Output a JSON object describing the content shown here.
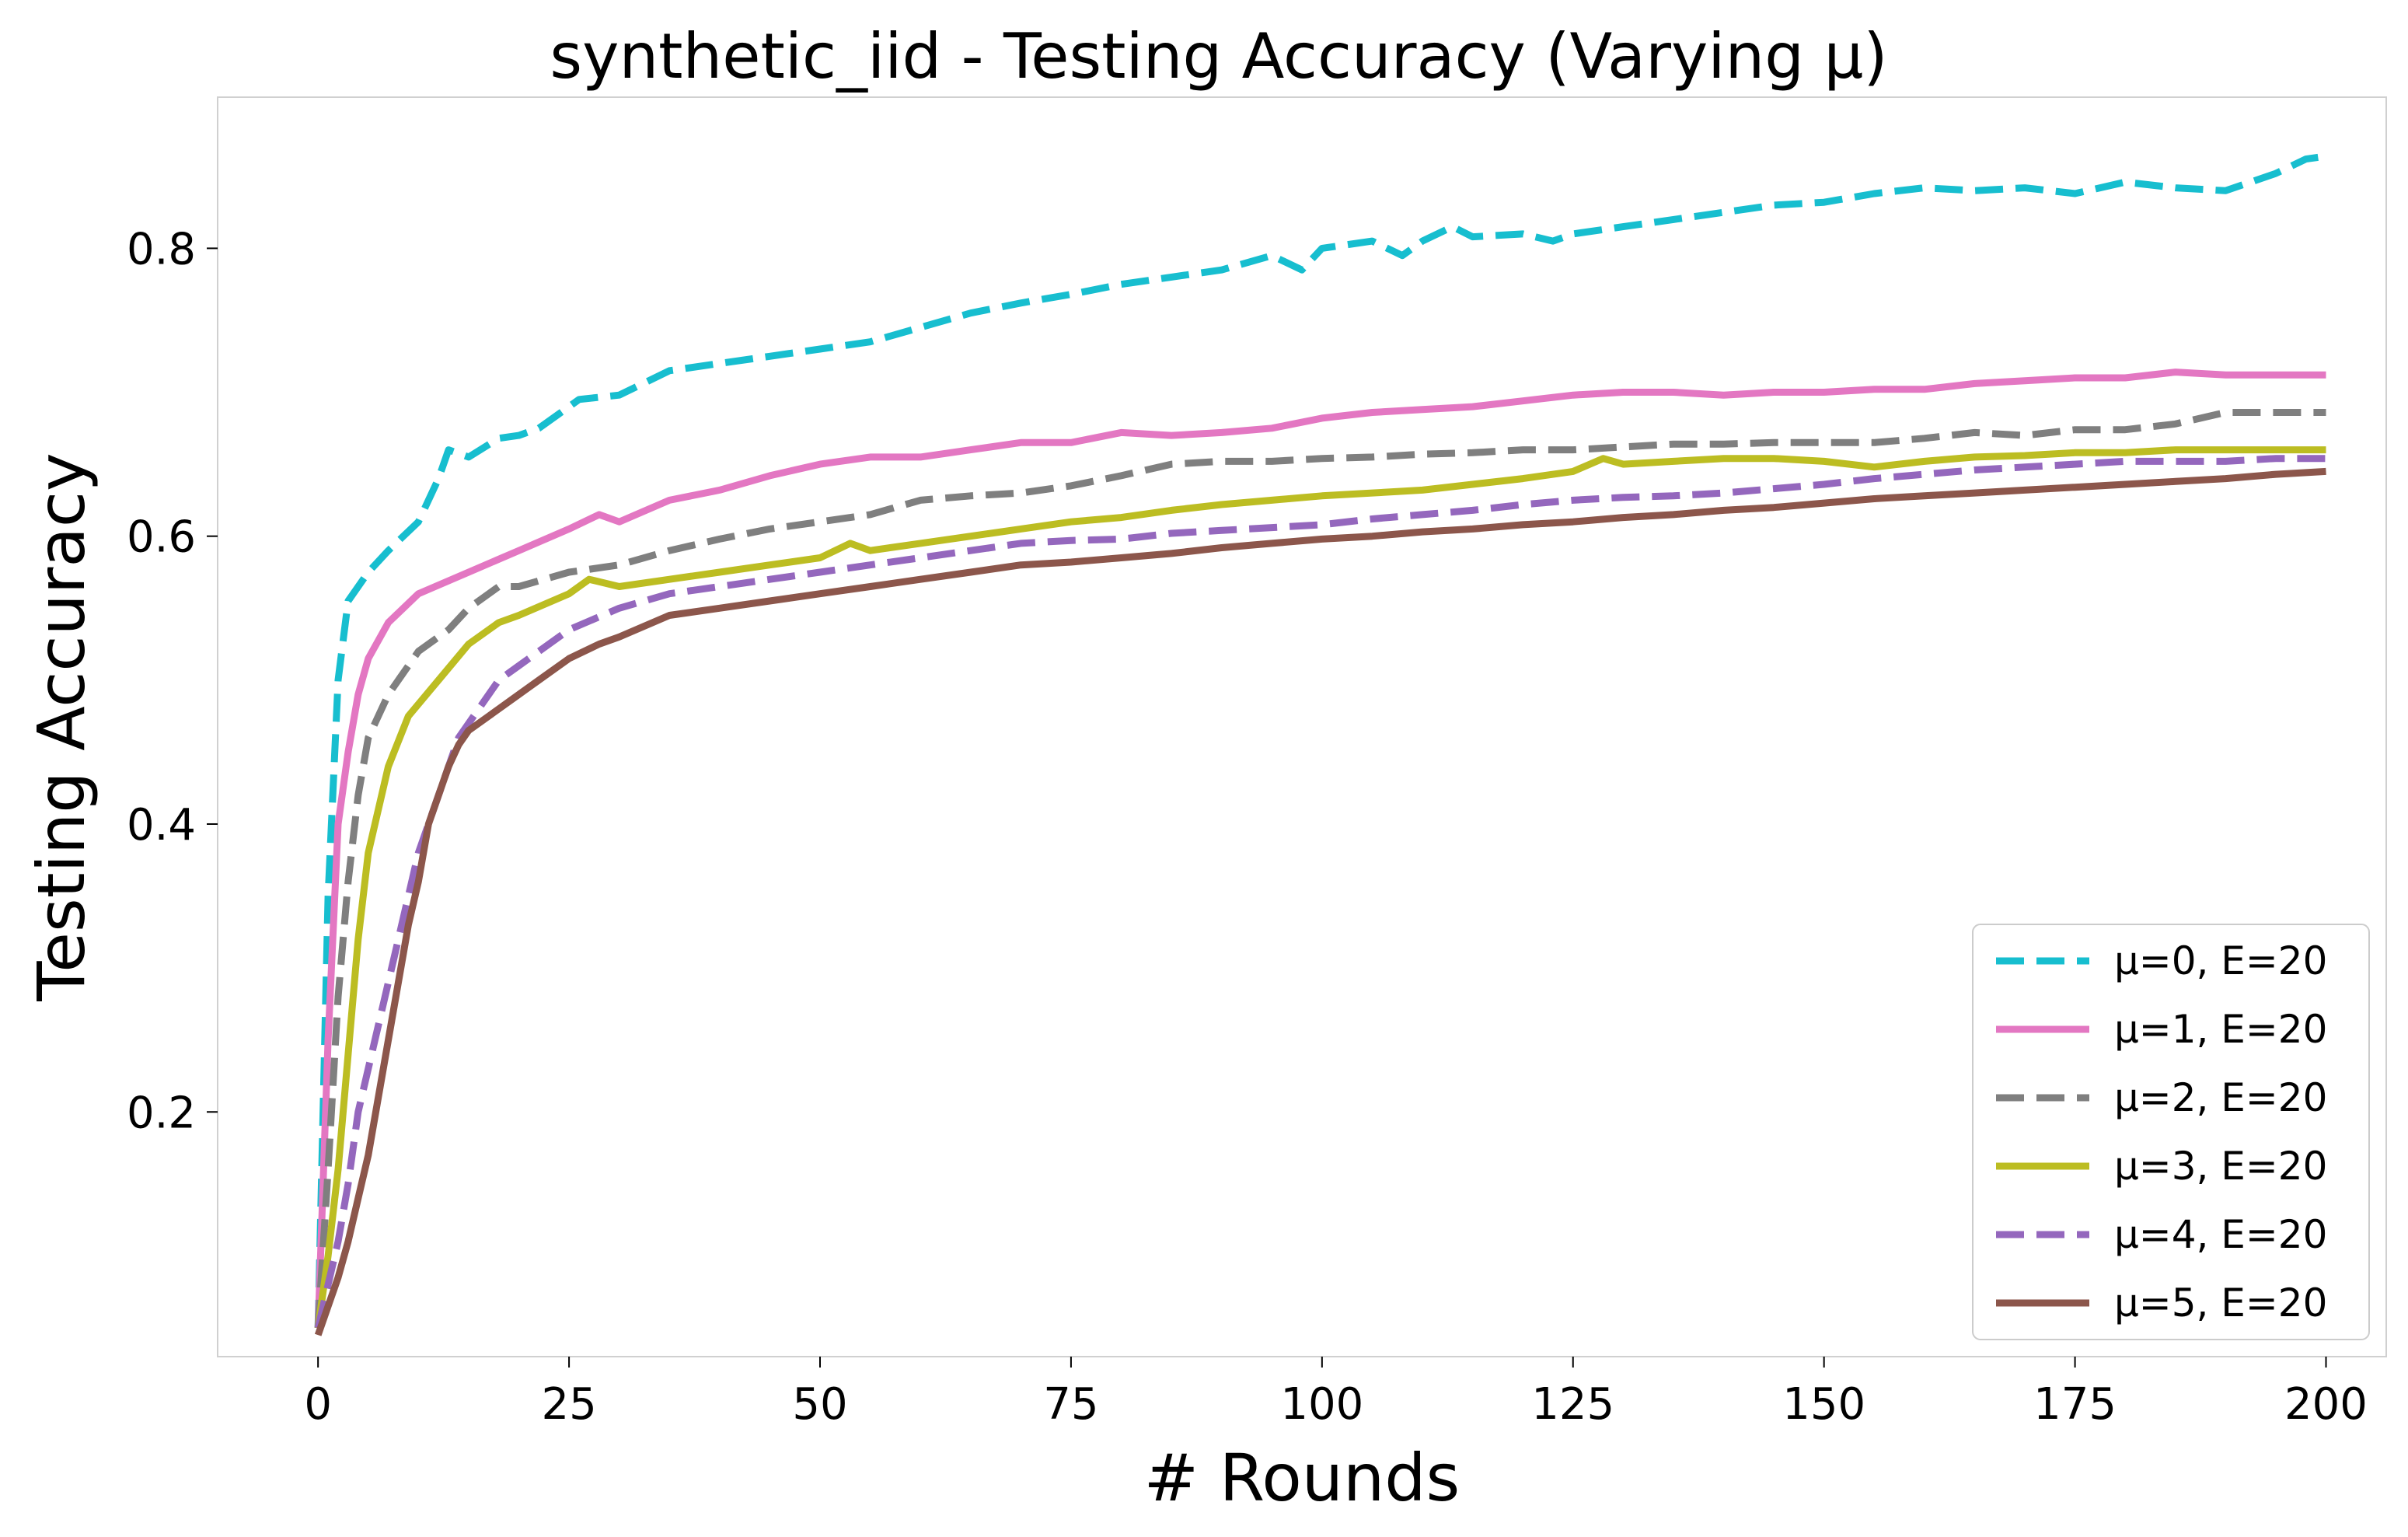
{
  "chart_data": {
    "type": "line",
    "title": "synthetic_iid - Testing Accuracy (Varying μ)",
    "xlabel": "# Rounds",
    "ylabel": "Testing Accuracy",
    "xlim": [
      -10,
      206
    ],
    "ylim": [
      0.03,
      0.905
    ],
    "xticks": [
      0,
      25,
      50,
      75,
      100,
      125,
      150,
      175,
      200
    ],
    "yticks": [
      0.2,
      0.4,
      0.6,
      0.8
    ],
    "xtick_labels": [
      "0",
      "25",
      "50",
      "75",
      "100",
      "125",
      "150",
      "175",
      "200"
    ],
    "ytick_labels": [
      "0.2",
      "0.4",
      "0.6",
      "0.8"
    ],
    "grid": false,
    "legend_position": "lower-right",
    "series": [
      {
        "name": "μ=0, E=20",
        "color": "#17becf",
        "dash": "dashed",
        "points": [
          [
            0,
            0.05
          ],
          [
            1,
            0.35
          ],
          [
            2,
            0.5
          ],
          [
            3,
            0.555
          ],
          [
            5,
            0.575
          ],
          [
            7,
            0.59
          ],
          [
            10,
            0.61
          ],
          [
            12,
            0.64
          ],
          [
            13,
            0.66
          ],
          [
            15,
            0.655
          ],
          [
            18,
            0.668
          ],
          [
            20,
            0.67
          ],
          [
            22,
            0.675
          ],
          [
            24,
            0.685
          ],
          [
            26,
            0.695
          ],
          [
            30,
            0.698
          ],
          [
            35,
            0.715
          ],
          [
            40,
            0.72
          ],
          [
            45,
            0.725
          ],
          [
            50,
            0.73
          ],
          [
            55,
            0.735
          ],
          [
            60,
            0.745
          ],
          [
            65,
            0.755
          ],
          [
            70,
            0.762
          ],
          [
            75,
            0.768
          ],
          [
            80,
            0.775
          ],
          [
            85,
            0.78
          ],
          [
            90,
            0.785
          ],
          [
            95,
            0.795
          ],
          [
            98,
            0.785
          ],
          [
            100,
            0.8
          ],
          [
            105,
            0.805
          ],
          [
            108,
            0.795
          ],
          [
            110,
            0.805
          ],
          [
            113,
            0.815
          ],
          [
            115,
            0.808
          ],
          [
            120,
            0.81
          ],
          [
            123,
            0.805
          ],
          [
            125,
            0.81
          ],
          [
            130,
            0.815
          ],
          [
            135,
            0.82
          ],
          [
            140,
            0.825
          ],
          [
            145,
            0.83
          ],
          [
            150,
            0.832
          ],
          [
            155,
            0.838
          ],
          [
            160,
            0.842
          ],
          [
            165,
            0.84
          ],
          [
            170,
            0.842
          ],
          [
            175,
            0.838
          ],
          [
            180,
            0.846
          ],
          [
            185,
            0.842
          ],
          [
            190,
            0.84
          ],
          [
            195,
            0.852
          ],
          [
            198,
            0.862
          ],
          [
            200,
            0.864
          ]
        ]
      },
      {
        "name": "μ=1, E=20",
        "color": "#e377c2",
        "dash": "solid",
        "points": [
          [
            0,
            0.05
          ],
          [
            1,
            0.25
          ],
          [
            2,
            0.4
          ],
          [
            3,
            0.45
          ],
          [
            4,
            0.49
          ],
          [
            5,
            0.515
          ],
          [
            7,
            0.54
          ],
          [
            10,
            0.56
          ],
          [
            15,
            0.575
          ],
          [
            20,
            0.59
          ],
          [
            25,
            0.605
          ],
          [
            28,
            0.615
          ],
          [
            30,
            0.61
          ],
          [
            35,
            0.625
          ],
          [
            40,
            0.632
          ],
          [
            45,
            0.642
          ],
          [
            50,
            0.65
          ],
          [
            55,
            0.655
          ],
          [
            60,
            0.655
          ],
          [
            65,
            0.66
          ],
          [
            70,
            0.665
          ],
          [
            75,
            0.665
          ],
          [
            80,
            0.672
          ],
          [
            85,
            0.67
          ],
          [
            90,
            0.672
          ],
          [
            95,
            0.675
          ],
          [
            100,
            0.682
          ],
          [
            105,
            0.686
          ],
          [
            110,
            0.688
          ],
          [
            115,
            0.69
          ],
          [
            120,
            0.694
          ],
          [
            125,
            0.698
          ],
          [
            130,
            0.7
          ],
          [
            135,
            0.7
          ],
          [
            140,
            0.698
          ],
          [
            145,
            0.7
          ],
          [
            150,
            0.7
          ],
          [
            155,
            0.702
          ],
          [
            160,
            0.702
          ],
          [
            165,
            0.706
          ],
          [
            170,
            0.708
          ],
          [
            175,
            0.71
          ],
          [
            180,
            0.71
          ],
          [
            185,
            0.714
          ],
          [
            190,
            0.712
          ],
          [
            195,
            0.712
          ],
          [
            200,
            0.712
          ]
        ]
      },
      {
        "name": "μ=2, E=20",
        "color": "#7f7f7f",
        "dash": "dashed",
        "points": [
          [
            0,
            0.05
          ],
          [
            1,
            0.16
          ],
          [
            2,
            0.28
          ],
          [
            3,
            0.36
          ],
          [
            4,
            0.42
          ],
          [
            5,
            0.46
          ],
          [
            7,
            0.49
          ],
          [
            10,
            0.52
          ],
          [
            13,
            0.535
          ],
          [
            15,
            0.55
          ],
          [
            18,
            0.565
          ],
          [
            20,
            0.565
          ],
          [
            25,
            0.575
          ],
          [
            30,
            0.58
          ],
          [
            35,
            0.59
          ],
          [
            40,
            0.598
          ],
          [
            45,
            0.605
          ],
          [
            50,
            0.61
          ],
          [
            55,
            0.615
          ],
          [
            60,
            0.625
          ],
          [
            65,
            0.628
          ],
          [
            70,
            0.63
          ],
          [
            75,
            0.635
          ],
          [
            80,
            0.642
          ],
          [
            85,
            0.65
          ],
          [
            90,
            0.652
          ],
          [
            95,
            0.652
          ],
          [
            100,
            0.654
          ],
          [
            105,
            0.655
          ],
          [
            110,
            0.657
          ],
          [
            115,
            0.658
          ],
          [
            120,
            0.66
          ],
          [
            125,
            0.66
          ],
          [
            130,
            0.662
          ],
          [
            135,
            0.664
          ],
          [
            140,
            0.664
          ],
          [
            145,
            0.665
          ],
          [
            150,
            0.665
          ],
          [
            155,
            0.665
          ],
          [
            160,
            0.668
          ],
          [
            165,
            0.672
          ],
          [
            170,
            0.67
          ],
          [
            175,
            0.674
          ],
          [
            180,
            0.674
          ],
          [
            185,
            0.678
          ],
          [
            190,
            0.686
          ],
          [
            195,
            0.686
          ],
          [
            200,
            0.686
          ]
        ]
      },
      {
        "name": "μ=3, E=20",
        "color": "#bcbd22",
        "dash": "solid",
        "points": [
          [
            0,
            0.05
          ],
          [
            1,
            0.1
          ],
          [
            2,
            0.16
          ],
          [
            3,
            0.24
          ],
          [
            4,
            0.32
          ],
          [
            5,
            0.38
          ],
          [
            7,
            0.44
          ],
          [
            9,
            0.475
          ],
          [
            12,
            0.5
          ],
          [
            15,
            0.525
          ],
          [
            18,
            0.54
          ],
          [
            20,
            0.545
          ],
          [
            25,
            0.56
          ],
          [
            27,
            0.57
          ],
          [
            30,
            0.565
          ],
          [
            35,
            0.57
          ],
          [
            40,
            0.575
          ],
          [
            45,
            0.58
          ],
          [
            50,
            0.585
          ],
          [
            53,
            0.595
          ],
          [
            55,
            0.59
          ],
          [
            60,
            0.595
          ],
          [
            65,
            0.6
          ],
          [
            70,
            0.605
          ],
          [
            75,
            0.61
          ],
          [
            80,
            0.613
          ],
          [
            85,
            0.618
          ],
          [
            90,
            0.622
          ],
          [
            95,
            0.625
          ],
          [
            100,
            0.628
          ],
          [
            105,
            0.63
          ],
          [
            110,
            0.632
          ],
          [
            115,
            0.636
          ],
          [
            120,
            0.64
          ],
          [
            125,
            0.645
          ],
          [
            128,
            0.654
          ],
          [
            130,
            0.65
          ],
          [
            135,
            0.652
          ],
          [
            140,
            0.654
          ],
          [
            145,
            0.654
          ],
          [
            150,
            0.652
          ],
          [
            155,
            0.648
          ],
          [
            160,
            0.652
          ],
          [
            165,
            0.655
          ],
          [
            170,
            0.656
          ],
          [
            175,
            0.658
          ],
          [
            180,
            0.658
          ],
          [
            185,
            0.66
          ],
          [
            190,
            0.66
          ],
          [
            195,
            0.66
          ],
          [
            200,
            0.66
          ]
        ]
      },
      {
        "name": "μ=4, E=20",
        "color": "#9467bd",
        "dash": "dashed",
        "points": [
          [
            0,
            0.05
          ],
          [
            1,
            0.08
          ],
          [
            2,
            0.11
          ],
          [
            3,
            0.15
          ],
          [
            4,
            0.2
          ],
          [
            6,
            0.26
          ],
          [
            8,
            0.32
          ],
          [
            10,
            0.38
          ],
          [
            12,
            0.42
          ],
          [
            14,
            0.46
          ],
          [
            16,
            0.48
          ],
          [
            18,
            0.5
          ],
          [
            20,
            0.51
          ],
          [
            25,
            0.535
          ],
          [
            30,
            0.55
          ],
          [
            35,
            0.56
          ],
          [
            40,
            0.565
          ],
          [
            45,
            0.57
          ],
          [
            50,
            0.575
          ],
          [
            55,
            0.58
          ],
          [
            60,
            0.585
          ],
          [
            65,
            0.59
          ],
          [
            70,
            0.595
          ],
          [
            75,
            0.597
          ],
          [
            80,
            0.598
          ],
          [
            85,
            0.602
          ],
          [
            90,
            0.604
          ],
          [
            95,
            0.606
          ],
          [
            100,
            0.608
          ],
          [
            105,
            0.612
          ],
          [
            110,
            0.615
          ],
          [
            115,
            0.618
          ],
          [
            120,
            0.622
          ],
          [
            125,
            0.625
          ],
          [
            130,
            0.627
          ],
          [
            135,
            0.628
          ],
          [
            140,
            0.63
          ],
          [
            145,
            0.633
          ],
          [
            150,
            0.636
          ],
          [
            155,
            0.64
          ],
          [
            160,
            0.643
          ],
          [
            165,
            0.646
          ],
          [
            170,
            0.648
          ],
          [
            175,
            0.65
          ],
          [
            180,
            0.652
          ],
          [
            185,
            0.652
          ],
          [
            190,
            0.652
          ],
          [
            195,
            0.654
          ],
          [
            200,
            0.654
          ]
        ]
      },
      {
        "name": "μ=5, E=20",
        "color": "#8c564b",
        "dash": "solid",
        "points": [
          [
            0,
            0.045
          ],
          [
            1,
            0.065
          ],
          [
            2,
            0.085
          ],
          [
            3,
            0.11
          ],
          [
            4,
            0.14
          ],
          [
            5,
            0.17
          ],
          [
            6,
            0.21
          ],
          [
            7,
            0.25
          ],
          [
            8,
            0.29
          ],
          [
            9,
            0.33
          ],
          [
            10,
            0.36
          ],
          [
            11,
            0.4
          ],
          [
            12,
            0.42
          ],
          [
            13,
            0.44
          ],
          [
            14,
            0.455
          ],
          [
            15,
            0.465
          ],
          [
            17,
            0.475
          ],
          [
            20,
            0.49
          ],
          [
            22,
            0.5
          ],
          [
            25,
            0.515
          ],
          [
            28,
            0.525
          ],
          [
            30,
            0.53
          ],
          [
            35,
            0.545
          ],
          [
            40,
            0.55
          ],
          [
            45,
            0.555
          ],
          [
            50,
            0.56
          ],
          [
            55,
            0.565
          ],
          [
            60,
            0.57
          ],
          [
            65,
            0.575
          ],
          [
            70,
            0.58
          ],
          [
            75,
            0.582
          ],
          [
            80,
            0.585
          ],
          [
            85,
            0.588
          ],
          [
            90,
            0.592
          ],
          [
            95,
            0.595
          ],
          [
            100,
            0.598
          ],
          [
            105,
            0.6
          ],
          [
            110,
            0.603
          ],
          [
            115,
            0.605
          ],
          [
            120,
            0.608
          ],
          [
            125,
            0.61
          ],
          [
            130,
            0.613
          ],
          [
            135,
            0.615
          ],
          [
            140,
            0.618
          ],
          [
            145,
            0.62
          ],
          [
            150,
            0.623
          ],
          [
            155,
            0.626
          ],
          [
            160,
            0.628
          ],
          [
            165,
            0.63
          ],
          [
            170,
            0.632
          ],
          [
            175,
            0.634
          ],
          [
            180,
            0.636
          ],
          [
            185,
            0.638
          ],
          [
            190,
            0.64
          ],
          [
            195,
            0.643
          ],
          [
            200,
            0.645
          ]
        ]
      }
    ]
  }
}
